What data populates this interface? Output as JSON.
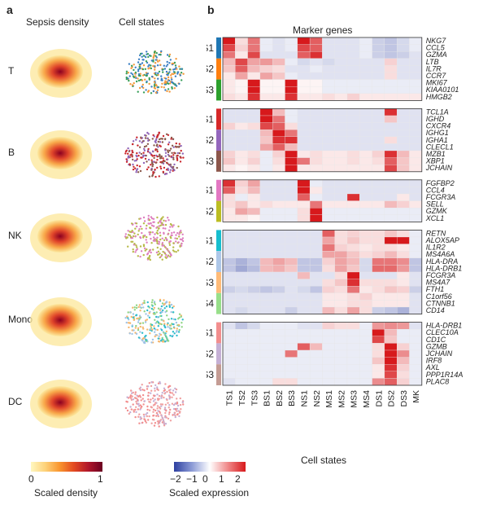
{
  "panel_a": {
    "letter": "a",
    "col1_title": "Sepsis density",
    "col2_title": "Cell states",
    "row_labels": [
      "T",
      "B",
      "NK",
      "Mono",
      "DC"
    ],
    "colorbar": {
      "label": "Scaled density",
      "min_label": "0",
      "max_label": "1",
      "colors": [
        "#fff7c0",
        "#fdd27a",
        "#f9962f",
        "#e34a21",
        "#b1172b",
        "#6b0021"
      ]
    }
  },
  "panel_b": {
    "letter": "b",
    "title": "Marker genes",
    "xlabel": "Cell states",
    "colorbar": {
      "label": "Scaled expression",
      "ticks": [
        "−2",
        "−1",
        "0",
        "1",
        "2"
      ],
      "colors": [
        "#2d3fa0",
        "#8c9bd6",
        "#ffffff",
        "#f08a8a",
        "#d7191c"
      ]
    }
  },
  "chart_data": {
    "type": "heatmap",
    "columns": [
      "TS1",
      "TS2",
      "TS3",
      "BS1",
      "BS2",
      "BS3",
      "NS1",
      "NS2",
      "MS1",
      "MS2",
      "MS3",
      "MS4",
      "DS1",
      "DS2",
      "DS3",
      "MK"
    ],
    "value_range": [
      -2,
      2
    ],
    "groups": [
      {
        "states": [
          {
            "name": "TS1",
            "color": "#1f77b4"
          },
          {
            "name": "TS2",
            "color": "#ff7f0e"
          },
          {
            "name": "TS3",
            "color": "#2ca02c"
          }
        ],
        "genes": [
          "NKG7",
          "CCL5",
          "GZMA",
          "LTB",
          "IL7R",
          "CCR7",
          "MKI67",
          "KIAA0101",
          "HMGB2"
        ],
        "values": [
          [
            2,
            0.3,
            1.2,
            -0.2,
            -0.3,
            -0.2,
            2,
            1.4,
            -0.3,
            -0.3,
            -0.3,
            -0.2,
            -0.5,
            -0.6,
            -0.4,
            -0.2
          ],
          [
            1.6,
            0.4,
            1.2,
            -0.2,
            -0.3,
            -0.2,
            1.6,
            1.4,
            -0.3,
            -0.3,
            -0.3,
            -0.2,
            -0.5,
            -0.6,
            -0.4,
            -0.2
          ],
          [
            1.2,
            0.2,
            1.6,
            -0.3,
            -0.3,
            -0.3,
            1.4,
            1.8,
            -0.3,
            -0.3,
            -0.3,
            -0.2,
            -0.5,
            -0.6,
            -0.5,
            -0.3
          ],
          [
            0.6,
            1.6,
            0.8,
            0.9,
            0.6,
            -0.2,
            -0.4,
            -0.3,
            -0.4,
            -0.3,
            -0.3,
            -0.3,
            -0.3,
            0.4,
            -0.3,
            -0.3
          ],
          [
            0.5,
            1.4,
            0.6,
            0.4,
            0.3,
            -0.3,
            -0.3,
            -0.2,
            -0.3,
            -0.3,
            -0.3,
            -0.3,
            -0.3,
            0.3,
            -0.3,
            -0.3
          ],
          [
            0.2,
            0.8,
            0.2,
            0.8,
            0.5,
            -0.2,
            -0.3,
            -0.3,
            -0.3,
            -0.3,
            -0.3,
            -0.3,
            -0.3,
            0.3,
            -0.3,
            -0.3
          ],
          [
            0.2,
            0.1,
            2,
            0.1,
            0.1,
            2,
            0.1,
            0.1,
            -0.2,
            -0.2,
            -0.2,
            -0.2,
            -0.2,
            -0.2,
            -0.2,
            -0.2
          ],
          [
            0.2,
            0.1,
            2,
            0.1,
            0.1,
            2,
            0.1,
            0.1,
            -0.2,
            -0.2,
            -0.2,
            -0.2,
            -0.2,
            -0.2,
            -0.2,
            -0.2
          ],
          [
            0.3,
            0.2,
            1.8,
            0.2,
            0.2,
            1.8,
            0.2,
            0.2,
            0.3,
            0.2,
            0.4,
            0.2,
            0.2,
            0.2,
            0.2,
            0.2
          ]
        ]
      },
      {
        "states": [
          {
            "name": "BS1",
            "color": "#d62728"
          },
          {
            "name": "BS2",
            "color": "#9467bd"
          },
          {
            "name": "BS3",
            "color": "#8c564b"
          }
        ],
        "genes": [
          "TCL1A",
          "IGHD",
          "CXCR4",
          "IGHG1",
          "IGHA1",
          "CLECL1",
          "MZB1",
          "XBP1",
          "JCHAIN"
        ],
        "values": [
          [
            -0.3,
            -0.3,
            -0.3,
            2,
            0.6,
            -0.2,
            -0.3,
            -0.3,
            -0.3,
            -0.3,
            -0.3,
            -0.3,
            -0.3,
            1.8,
            -0.3,
            -0.3
          ],
          [
            -0.3,
            -0.3,
            -0.3,
            2,
            1.2,
            -0.2,
            -0.3,
            -0.3,
            -0.3,
            -0.3,
            -0.3,
            -0.3,
            -0.3,
            0.5,
            -0.3,
            -0.3
          ],
          [
            0.4,
            0.2,
            0.3,
            1.6,
            1.4,
            0.3,
            -0.3,
            -0.3,
            -0.3,
            -0.3,
            -0.3,
            -0.3,
            -0.3,
            -0.3,
            -0.3,
            -0.3
          ],
          [
            -0.3,
            -0.3,
            -0.3,
            0.6,
            2,
            1.2,
            -0.3,
            -0.3,
            -0.3,
            -0.3,
            -0.3,
            -0.3,
            -0.3,
            -0.3,
            -0.3,
            -0.3
          ],
          [
            -0.3,
            -0.3,
            -0.3,
            0.5,
            1.8,
            1.8,
            -0.3,
            -0.3,
            -0.3,
            -0.3,
            -0.3,
            -0.3,
            -0.3,
            0.3,
            -0.3,
            -0.3
          ],
          [
            -0.3,
            -0.3,
            -0.3,
            0.8,
            1.4,
            0.6,
            -0.3,
            -0.3,
            -0.3,
            -0.3,
            -0.3,
            -0.3,
            -0.3,
            -0.3,
            -0.3,
            -0.3
          ],
          [
            0.4,
            0.2,
            0.3,
            -0.2,
            0.4,
            2,
            0.2,
            0.3,
            0.2,
            0.2,
            0.3,
            0.2,
            0.4,
            1.8,
            0.6,
            0.2
          ],
          [
            0.5,
            0.2,
            0.4,
            -0.2,
            0.3,
            2,
            1.2,
            0.3,
            0.2,
            0.2,
            0.3,
            0.2,
            0.3,
            1.4,
            0.5,
            0.2
          ],
          [
            0.2,
            0.1,
            0.2,
            -0.2,
            0.2,
            2,
            0.2,
            0.2,
            0.2,
            0.2,
            0.2,
            0.2,
            0.2,
            1.6,
            0.5,
            0.2
          ]
        ]
      },
      {
        "states": [
          {
            "name": "NS1",
            "color": "#e377c2"
          },
          {
            "name": "NS2",
            "color": "#bcbd22"
          }
        ],
        "genes": [
          "FGFBP2",
          "CCL4",
          "FCGR3A",
          "SELL",
          "GZMK",
          "XCL1"
        ],
        "values": [
          [
            1.8,
            0.4,
            0.8,
            -0.3,
            -0.3,
            -0.3,
            2,
            -0.2,
            -0.3,
            -0.3,
            -0.3,
            -0.3,
            -0.3,
            -0.3,
            -0.3,
            -0.3
          ],
          [
            1.4,
            0.3,
            0.6,
            -0.3,
            -0.3,
            -0.3,
            2,
            0.2,
            -0.3,
            -0.3,
            -0.3,
            -0.3,
            -0.3,
            -0.3,
            -0.3,
            -0.3
          ],
          [
            0.3,
            -0.2,
            0.2,
            -0.3,
            -0.3,
            -0.3,
            1.4,
            -0.2,
            -0.3,
            -0.3,
            1.8,
            -0.3,
            -0.3,
            -0.3,
            0.2,
            -0.3
          ],
          [
            0.3,
            0.5,
            0.2,
            0.3,
            0.2,
            0.2,
            0.2,
            1.2,
            0.2,
            0.2,
            0.2,
            0.2,
            0.2,
            0.6,
            0.4,
            0.2
          ],
          [
            0.2,
            0.8,
            0.6,
            -0.2,
            -0.2,
            -0.2,
            0.3,
            2,
            -0.2,
            -0.2,
            -0.2,
            -0.2,
            -0.2,
            -0.2,
            -0.2,
            -0.2
          ],
          [
            0.2,
            0.2,
            0.1,
            -0.2,
            -0.2,
            -0.2,
            0.3,
            2,
            -0.2,
            -0.2,
            -0.2,
            -0.2,
            -0.2,
            -0.2,
            -0.2,
            -0.2
          ]
        ]
      },
      {
        "states": [
          {
            "name": "MS1",
            "color": "#17becf"
          },
          {
            "name": "MS2",
            "color": "#aec7e8"
          },
          {
            "name": "MS3",
            "color": "#ffbb78"
          },
          {
            "name": "MS4",
            "color": "#98df8a"
          }
        ],
        "genes": [
          "RETN",
          "ALOX5AP",
          "IL1R2",
          "MS4A6A",
          "HLA-DRA",
          "HLA-DRB1",
          "FCGR3A",
          "MS4A7",
          "FTH1",
          "C1orf56",
          "CTNNB1",
          "CD14"
        ],
        "values": [
          [
            -0.3,
            -0.3,
            -0.3,
            -0.3,
            -0.3,
            -0.3,
            -0.3,
            -0.3,
            1.4,
            0.3,
            0.4,
            0.3,
            0.3,
            0.5,
            0.3,
            -0.2
          ],
          [
            -0.3,
            -0.3,
            -0.3,
            -0.3,
            -0.3,
            -0.3,
            -0.3,
            -0.3,
            0.8,
            0.3,
            0.5,
            0.3,
            0.3,
            2,
            2,
            -0.2
          ],
          [
            -0.3,
            -0.3,
            -0.3,
            -0.3,
            -0.3,
            -0.3,
            -0.3,
            -0.3,
            1.2,
            0.4,
            0.3,
            0.2,
            0.3,
            0.3,
            0.2,
            -0.2
          ],
          [
            -0.3,
            -0.3,
            -0.3,
            -0.3,
            -0.3,
            -0.3,
            -0.3,
            -0.3,
            0.8,
            0.8,
            0.5,
            0.3,
            0.4,
            0.6,
            0.3,
            -0.2
          ],
          [
            -0.6,
            -0.8,
            -0.6,
            0.6,
            0.8,
            0.6,
            -0.6,
            -0.6,
            0.4,
            0.8,
            0.6,
            -0.4,
            1.2,
            1.2,
            1,
            -0.6
          ],
          [
            -0.6,
            -0.9,
            -0.7,
            0.6,
            0.7,
            0.5,
            -0.6,
            -0.6,
            0.3,
            0.8,
            0.5,
            -0.4,
            1.3,
            1.3,
            0.9,
            -0.6
          ],
          [
            -0.3,
            -0.3,
            -0.3,
            -0.3,
            -0.3,
            -0.3,
            0.6,
            -0.3,
            -0.3,
            0.3,
            2,
            -0.3,
            -0.3,
            -0.3,
            0.2,
            -0.3
          ],
          [
            -0.3,
            -0.3,
            -0.3,
            -0.3,
            -0.3,
            -0.3,
            -0.3,
            -0.3,
            0.3,
            0.5,
            1.8,
            0.3,
            0.3,
            0.3,
            0.2,
            -0.3
          ],
          [
            -0.5,
            -0.4,
            -0.5,
            -0.6,
            -0.5,
            -0.3,
            -0.4,
            -0.6,
            0.4,
            0.3,
            1.2,
            0.2,
            0.3,
            0.5,
            0.4,
            -0.5
          ],
          [
            -0.3,
            -0.3,
            -0.3,
            -0.3,
            -0.3,
            -0.3,
            -0.3,
            -0.3,
            0.2,
            0.2,
            0.3,
            0.4,
            0.2,
            0.2,
            0.2,
            -0.3
          ],
          [
            -0.3,
            -0.3,
            -0.3,
            -0.3,
            -0.3,
            -0.3,
            -0.3,
            -0.3,
            0.2,
            0.2,
            0.3,
            0.3,
            0.2,
            0.2,
            0.2,
            -0.3
          ],
          [
            -0.3,
            -0.4,
            -0.3,
            -0.3,
            -0.3,
            -0.5,
            -0.3,
            -0.3,
            0.6,
            0.3,
            0.8,
            0.3,
            -0.5,
            -0.6,
            -0.8,
            -0.3
          ]
        ]
      },
      {
        "states": [
          {
            "name": "DS1",
            "color": "#f28e8e"
          },
          {
            "name": "DS2",
            "color": "#c5b0d5"
          },
          {
            "name": "DS3",
            "color": "#c49c94"
          }
        ],
        "genes": [
          "HLA-DRB1",
          "CLEC10A",
          "CD1C",
          "GZMB",
          "JCHAIN",
          "IRF8",
          "AXL",
          "PPP1R14A",
          "PLAC8"
        ],
        "values": [
          [
            -0.3,
            -0.6,
            -0.4,
            -0.2,
            -0.2,
            -0.2,
            -0.3,
            -0.3,
            0.4,
            0.3,
            0.3,
            -0.2,
            0.9,
            1,
            0.9,
            -0.3
          ],
          [
            -0.2,
            -0.2,
            -0.2,
            -0.2,
            -0.2,
            -0.2,
            -0.2,
            -0.2,
            -0.2,
            -0.2,
            -0.2,
            -0.2,
            2,
            0.6,
            -0.2,
            -0.2
          ],
          [
            -0.2,
            -0.2,
            -0.2,
            -0.2,
            -0.2,
            -0.2,
            -0.2,
            -0.2,
            -0.2,
            -0.2,
            -0.2,
            -0.2,
            1.6,
            0.5,
            -0.2,
            -0.2
          ],
          [
            -0.2,
            -0.2,
            -0.2,
            -0.2,
            -0.2,
            -0.2,
            1.4,
            0.6,
            -0.2,
            -0.2,
            -0.2,
            -0.2,
            0.3,
            2,
            0.4,
            -0.2
          ],
          [
            -0.2,
            -0.2,
            -0.2,
            -0.2,
            -0.2,
            1.2,
            -0.2,
            -0.2,
            -0.2,
            -0.2,
            -0.2,
            -0.2,
            0.3,
            2,
            1,
            -0.2
          ],
          [
            -0.2,
            -0.2,
            -0.2,
            -0.2,
            -0.2,
            -0.2,
            -0.2,
            -0.2,
            -0.2,
            -0.2,
            -0.2,
            -0.2,
            0.5,
            2,
            0.6,
            -0.2
          ],
          [
            -0.2,
            -0.2,
            -0.2,
            -0.2,
            -0.2,
            -0.2,
            -0.2,
            -0.2,
            -0.2,
            -0.2,
            -0.2,
            -0.2,
            0.2,
            1.8,
            0.4,
            -0.2
          ],
          [
            -0.2,
            -0.2,
            -0.2,
            -0.2,
            -0.2,
            -0.2,
            -0.2,
            -0.2,
            -0.2,
            -0.2,
            -0.2,
            -0.2,
            0.2,
            1.6,
            0.3,
            -0.2
          ],
          [
            -0.3,
            -0.2,
            -0.2,
            -0.2,
            0.3,
            0.3,
            -0.2,
            -0.2,
            -0.2,
            -0.2,
            -0.2,
            -0.2,
            1,
            1.4,
            0.4,
            -0.2
          ]
        ]
      }
    ]
  }
}
